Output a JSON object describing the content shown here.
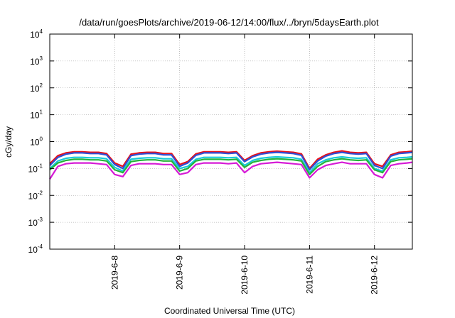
{
  "chart_data": {
    "type": "line",
    "title": "/data/run/goesPlots/archive/2019-06-12/14:00/flux/../bryn/5daysEarth.plot",
    "xlabel": "Coordinated Universal Time (UTC)",
    "ylabel": "cGy/day",
    "yscale": "log",
    "ylim": [
      0.0001,
      10000
    ],
    "y_ticks": [
      {
        "base": "10",
        "exp": "-4",
        "value": 0.0001
      },
      {
        "base": "10",
        "exp": "-3",
        "value": 0.001
      },
      {
        "base": "10",
        "exp": "-2",
        "value": 0.01
      },
      {
        "base": "10",
        "exp": "-1",
        "value": 0.1
      },
      {
        "base": "10",
        "exp": "0",
        "value": 1
      },
      {
        "base": "10",
        "exp": "1",
        "value": 10
      },
      {
        "base": "10",
        "exp": "2",
        "value": 100
      },
      {
        "base": "10",
        "exp": "3",
        "value": 1000
      },
      {
        "base": "10",
        "exp": "4",
        "value": 10000
      }
    ],
    "xlim": [
      "2019-06-07 00:00",
      "2019-06-12 14:00"
    ],
    "x_ticks": [
      "2019-6-8",
      "2019-6-9",
      "2019-6-10",
      "2019-6-11",
      "2019-6-12"
    ],
    "grid": true,
    "legend": "none",
    "x": [
      "2019-06-07 00:00",
      "2019-06-07 03:00",
      "2019-06-07 06:00",
      "2019-06-07 09:00",
      "2019-06-07 12:00",
      "2019-06-07 15:00",
      "2019-06-07 18:00",
      "2019-06-07 21:00",
      "2019-06-08 00:00",
      "2019-06-08 03:00",
      "2019-06-08 06:00",
      "2019-06-08 09:00",
      "2019-06-08 12:00",
      "2019-06-08 15:00",
      "2019-06-08 18:00",
      "2019-06-08 21:00",
      "2019-06-09 00:00",
      "2019-06-09 03:00",
      "2019-06-09 06:00",
      "2019-06-09 09:00",
      "2019-06-09 12:00",
      "2019-06-09 15:00",
      "2019-06-09 18:00",
      "2019-06-09 21:00",
      "2019-06-10 00:00",
      "2019-06-10 03:00",
      "2019-06-10 06:00",
      "2019-06-10 09:00",
      "2019-06-10 12:00",
      "2019-06-10 15:00",
      "2019-06-10 18:00",
      "2019-06-10 21:00",
      "2019-06-11 00:00",
      "2019-06-11 03:00",
      "2019-06-11 06:00",
      "2019-06-11 09:00",
      "2019-06-11 12:00",
      "2019-06-11 15:00",
      "2019-06-11 18:00",
      "2019-06-11 21:00",
      "2019-06-12 00:00",
      "2019-06-12 03:00",
      "2019-06-12 06:00",
      "2019-06-12 09:00",
      "2019-06-12 12:00",
      "2019-06-12 14:00"
    ],
    "series": [
      {
        "color": "#e8101a",
        "values": [
          0.15,
          0.3,
          0.38,
          0.42,
          0.42,
          0.4,
          0.4,
          0.36,
          0.16,
          0.12,
          0.34,
          0.38,
          0.4,
          0.4,
          0.36,
          0.36,
          0.14,
          0.18,
          0.35,
          0.42,
          0.42,
          0.42,
          0.4,
          0.42,
          0.2,
          0.3,
          0.38,
          0.42,
          0.44,
          0.42,
          0.4,
          0.35,
          0.1,
          0.22,
          0.32,
          0.4,
          0.45,
          0.4,
          0.38,
          0.4,
          0.15,
          0.12,
          0.32,
          0.4,
          0.42,
          0.44
        ]
      },
      {
        "color": "#2e4fd6",
        "values": [
          0.13,
          0.26,
          0.34,
          0.38,
          0.38,
          0.36,
          0.36,
          0.32,
          0.14,
          0.1,
          0.3,
          0.34,
          0.36,
          0.36,
          0.32,
          0.32,
          0.12,
          0.16,
          0.31,
          0.38,
          0.38,
          0.38,
          0.36,
          0.38,
          0.18,
          0.27,
          0.34,
          0.38,
          0.4,
          0.38,
          0.36,
          0.31,
          0.09,
          0.19,
          0.29,
          0.36,
          0.4,
          0.36,
          0.34,
          0.36,
          0.13,
          0.1,
          0.29,
          0.36,
          0.38,
          0.4
        ]
      },
      {
        "color": "#17c9d9",
        "values": [
          0.1,
          0.19,
          0.24,
          0.26,
          0.26,
          0.25,
          0.25,
          0.23,
          0.11,
          0.08,
          0.22,
          0.24,
          0.25,
          0.25,
          0.23,
          0.23,
          0.1,
          0.12,
          0.22,
          0.26,
          0.26,
          0.26,
          0.25,
          0.26,
          0.13,
          0.2,
          0.24,
          0.26,
          0.27,
          0.26,
          0.25,
          0.22,
          0.07,
          0.15,
          0.21,
          0.25,
          0.27,
          0.25,
          0.24,
          0.25,
          0.1,
          0.08,
          0.21,
          0.25,
          0.26,
          0.27
        ]
      },
      {
        "color": "#22b43a",
        "values": [
          0.09,
          0.16,
          0.2,
          0.22,
          0.22,
          0.21,
          0.21,
          0.19,
          0.09,
          0.07,
          0.18,
          0.2,
          0.21,
          0.21,
          0.19,
          0.19,
          0.08,
          0.1,
          0.19,
          0.22,
          0.22,
          0.22,
          0.21,
          0.22,
          0.11,
          0.17,
          0.2,
          0.22,
          0.23,
          0.22,
          0.21,
          0.19,
          0.06,
          0.12,
          0.18,
          0.21,
          0.23,
          0.21,
          0.2,
          0.21,
          0.09,
          0.07,
          0.18,
          0.21,
          0.22,
          0.23
        ]
      },
      {
        "color": "#d61ad6",
        "values": [
          0.04,
          0.12,
          0.15,
          0.16,
          0.16,
          0.16,
          0.15,
          0.14,
          0.06,
          0.05,
          0.13,
          0.15,
          0.15,
          0.15,
          0.14,
          0.14,
          0.06,
          0.07,
          0.14,
          0.16,
          0.16,
          0.16,
          0.15,
          0.16,
          0.07,
          0.12,
          0.15,
          0.16,
          0.17,
          0.16,
          0.15,
          0.14,
          0.045,
          0.09,
          0.13,
          0.15,
          0.17,
          0.15,
          0.15,
          0.15,
          0.06,
          0.045,
          0.13,
          0.15,
          0.16,
          0.17
        ]
      }
    ]
  }
}
